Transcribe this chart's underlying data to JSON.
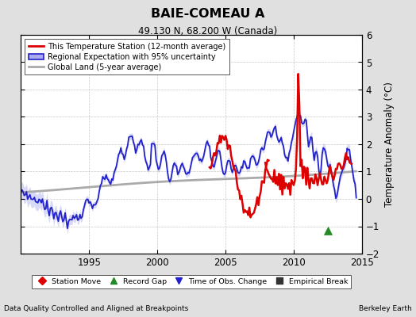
{
  "title": "BAIE-COMEAU A",
  "subtitle": "49.130 N, 68.200 W (Canada)",
  "ylabel": "Temperature Anomaly (°C)",
  "xlabel_left": "Data Quality Controlled and Aligned at Breakpoints",
  "xlabel_right": "Berkeley Earth",
  "ylim": [
    -2,
    6
  ],
  "xlim": [
    1990,
    2015
  ],
  "yticks": [
    -2,
    -1,
    0,
    1,
    2,
    3,
    4,
    5,
    6
  ],
  "xticks": [
    1995,
    2000,
    2005,
    2010,
    2015
  ],
  "bg_color": "#e0e0e0",
  "plot_bg_color": "#ffffff",
  "grid_color": "#b0b0b0",
  "red_color": "#dd0000",
  "blue_color": "#2222cc",
  "band_color": "#aaaaee",
  "gray_color": "#aaaaaa",
  "green_marker_x": 2012.5,
  "green_marker_y": -1.15,
  "legend_items": [
    {
      "label": "This Temperature Station (12-month average)"
    },
    {
      "label": "Regional Expectation with 95% uncertainty"
    },
    {
      "label": "Global Land (5-year average)"
    }
  ],
  "marker_legend": [
    {
      "label": "Station Move",
      "marker": "D",
      "color": "#dd0000"
    },
    {
      "label": "Record Gap",
      "marker": "^",
      "color": "#228B22"
    },
    {
      "label": "Time of Obs. Change",
      "marker": "v",
      "color": "#2222cc"
    },
    {
      "label": "Empirical Break",
      "marker": "s",
      "color": "#333333"
    }
  ]
}
